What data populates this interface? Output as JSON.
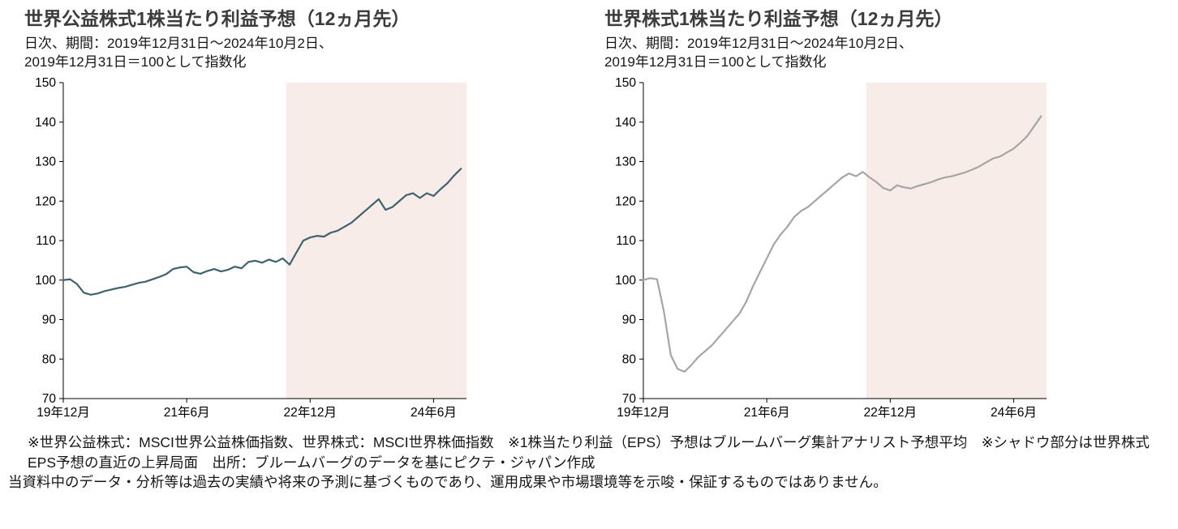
{
  "chart_data": [
    {
      "type": "line",
      "title": "世界公益株式1株当たり利益予想（12ヵ月先）",
      "subtitle_lines": [
        "日次、期間：2019年12月31日～2024年10月2日、",
        "2019年12月31日＝100として指数化"
      ],
      "x_start": "2019-12",
      "x_unit": "months since 2019-12",
      "x_range_months": [
        0,
        58.8
      ],
      "x_ticks": [
        {
          "month": 0,
          "label": "19年12月"
        },
        {
          "month": 18,
          "label": "21年6月"
        },
        {
          "month": 36,
          "label": "22年12月"
        },
        {
          "month": 54,
          "label": "24年6月"
        }
      ],
      "ylim": [
        70,
        150
      ],
      "y_tick_step": 10,
      "grid": false,
      "legend": false,
      "shade_start_month": 32.5,
      "shade_color": "#f7ece8",
      "line_color": "#3e626e",
      "series": [
        {
          "name": "MSCI世界公益株価指数 EPS予想（2019年12月31日＝100）",
          "values": [
            100.0,
            100.2,
            99.0,
            96.8,
            96.3,
            96.6,
            97.2,
            97.6,
            98.0,
            98.3,
            98.8,
            99.3,
            99.6,
            100.2,
            100.8,
            101.5,
            102.8,
            103.2,
            103.4,
            102.0,
            101.6,
            102.3,
            102.8,
            102.2,
            102.6,
            103.4,
            103.0,
            104.6,
            104.9,
            104.4,
            105.2,
            104.6,
            105.5,
            103.9,
            107.0,
            110.0,
            110.8,
            111.2,
            111.0,
            112.0,
            112.5,
            113.5,
            114.5,
            116.0,
            117.5,
            119.0,
            120.5,
            117.8,
            118.5,
            120.0,
            121.5,
            122.0,
            120.8,
            122.0,
            121.3,
            123.0,
            124.5,
            126.5,
            128.2
          ]
        }
      ]
    },
    {
      "type": "line",
      "title": "世界株式1株当たり利益予想（12ヵ月先）",
      "subtitle_lines": [
        "日次、期間：2019年12月31日～2024年10月2日、",
        "2019年12月31日＝100として指数化"
      ],
      "x_start": "2019-12",
      "x_unit": "months since 2019-12",
      "x_range_months": [
        0,
        58.8
      ],
      "x_ticks": [
        {
          "month": 0,
          "label": "19年12月"
        },
        {
          "month": 18,
          "label": "21年6月"
        },
        {
          "month": 36,
          "label": "22年12月"
        },
        {
          "month": 54,
          "label": "24年6月"
        }
      ],
      "ylim": [
        70,
        150
      ],
      "y_tick_step": 10,
      "grid": false,
      "legend": false,
      "shade_start_month": 32.5,
      "shade_color": "#f7ece8",
      "line_color": "#a5a5a5",
      "series": [
        {
          "name": "MSCI世界株価指数 EPS予想（2019年12月31日＝100）",
          "values": [
            100.0,
            100.5,
            100.2,
            92.0,
            81.0,
            77.5,
            76.8,
            78.5,
            80.5,
            82.0,
            83.5,
            85.5,
            87.5,
            89.5,
            91.5,
            94.5,
            98.5,
            102.0,
            105.5,
            109.0,
            111.5,
            113.5,
            116.0,
            117.5,
            118.5,
            120.0,
            121.5,
            123.0,
            124.5,
            126.0,
            127.0,
            126.3,
            127.4,
            126.0,
            124.8,
            123.3,
            122.7,
            124.0,
            123.5,
            123.2,
            123.8,
            124.3,
            124.8,
            125.5,
            126.0,
            126.3,
            126.8,
            127.3,
            128.0,
            128.8,
            129.8,
            130.8,
            131.3,
            132.3,
            133.3,
            134.8,
            136.5,
            139.0,
            141.5
          ]
        }
      ]
    }
  ],
  "notes": [
    "※世界公益株式：MSCI世界公益株価指数、世界株式：MSCI世界株価指数　※1株当たり利益（EPS）予想はブルームバーグ集計アナリスト予想平均　※シャドウ部分は世界株式EPS予想の直近の上昇局面　出所：ブルームバーグのデータを基にピクテ・ジャパン作成",
    "当資料中のデータ・分析等は過去の実績や将来の予測に基づくものであり、運用成果や市場環境等を示唆・保証するものではありません。"
  ]
}
